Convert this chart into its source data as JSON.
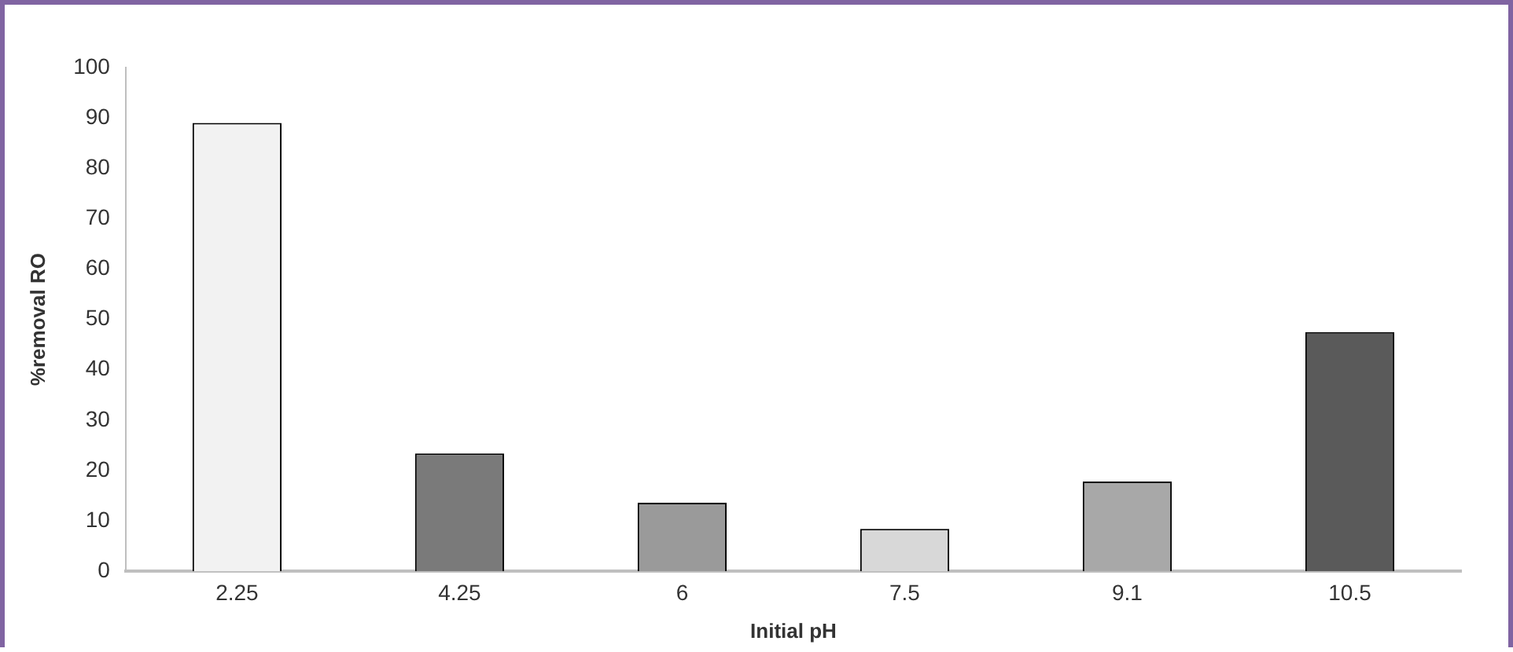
{
  "chart_data": {
    "type": "bar",
    "xlabel": "Initial pH",
    "ylabel": "%removal RO",
    "categories": [
      "2.25",
      "4.25",
      "6",
      "7.5",
      "9.1",
      "10.5"
    ],
    "values": [
      89,
      23.4,
      13.6,
      8.4,
      17.8,
      47.5
    ],
    "colors": [
      "#f2f2f2",
      "#7a7a7a",
      "#9a9a9a",
      "#d8d8d8",
      "#a8a8a8",
      "#5a5a5a"
    ],
    "ylim": [
      0,
      100
    ],
    "yticks": [
      0,
      10,
      20,
      30,
      40,
      50,
      60,
      70,
      80,
      90,
      100
    ],
    "grid": false,
    "legend": false
  }
}
